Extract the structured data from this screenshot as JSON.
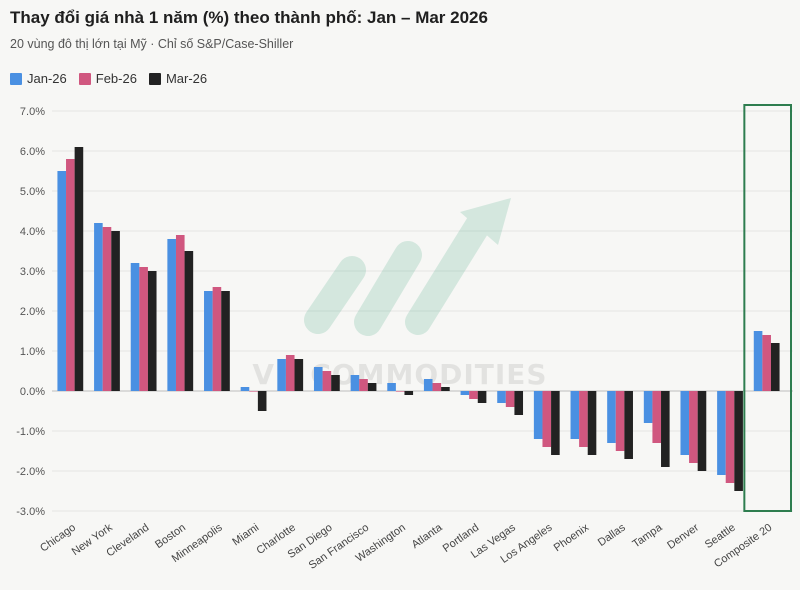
{
  "chart_data": {
    "type": "bar",
    "title": "Thay đổi giá nhà 1 năm (%) theo thành phố: Jan – Mar 2026",
    "subtitle": "20 vùng đô thị lớn tại Mỹ · Chỉ số S&P/Case-Shiller",
    "categories": [
      "Chicago",
      "New York",
      "Cleveland",
      "Boston",
      "Minneapolis",
      "Miami",
      "Charlotte",
      "San Diego",
      "San Francisco",
      "Washington",
      "Atlanta",
      "Portland",
      "Las Vegas",
      "Los Angeles",
      "Phoenix",
      "Dallas",
      "Tampa",
      "Denver",
      "Seattle",
      "Composite 20"
    ],
    "series": [
      {
        "name": "Jan-26",
        "color": "#4a90e2",
        "values": [
          5.5,
          4.2,
          3.2,
          3.8,
          2.5,
          0.1,
          0.8,
          0.6,
          0.4,
          0.2,
          0.3,
          -0.1,
          -0.3,
          -1.2,
          -1.2,
          -1.3,
          -0.8,
          -1.6,
          -2.1,
          1.5
        ]
      },
      {
        "name": "Feb-26",
        "color": "#d0577f",
        "values": [
          5.8,
          4.1,
          3.1,
          3.9,
          2.6,
          0.0,
          0.9,
          0.5,
          0.3,
          0.0,
          0.2,
          -0.2,
          -0.4,
          -1.4,
          -1.4,
          -1.5,
          -1.3,
          -1.8,
          -2.3,
          1.4
        ]
      },
      {
        "name": "Mar-26",
        "color": "#222222",
        "values": [
          6.1,
          4.0,
          3.0,
          3.5,
          2.5,
          -0.5,
          0.8,
          0.4,
          0.2,
          -0.1,
          0.1,
          -0.3,
          -0.6,
          -1.6,
          -1.6,
          -1.7,
          -1.9,
          -2.0,
          -2.5,
          1.2
        ]
      }
    ],
    "ylim": [
      -3.0,
      7.0
    ],
    "yticks": [
      -3.0,
      -2.0,
      -1.0,
      0.0,
      1.0,
      2.0,
      3.0,
      4.0,
      5.0,
      6.0,
      7.0
    ],
    "ytick_labels": [
      "-3.0%",
      "-2.0%",
      "-1.0%",
      "0.0%",
      "1.0%",
      "2.0%",
      "3.0%",
      "4.0%",
      "5.0%",
      "6.0%",
      "7.0%"
    ],
    "grid": true,
    "legend": "top-left",
    "highlight_category": "Composite 20",
    "highlight_color": "#2e7d4f",
    "watermark": "VN COMMODITIES"
  }
}
